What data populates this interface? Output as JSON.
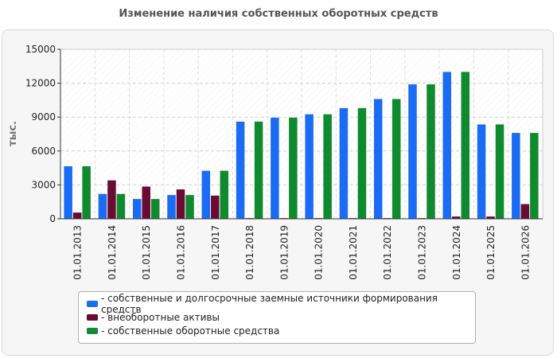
{
  "title": "Изменение наличия собственных оборотных средств",
  "chart_data": {
    "type": "bar",
    "ylabel": "тыс.",
    "ylim": [
      0,
      15000
    ],
    "yticks": [
      0,
      3000,
      6000,
      9000,
      12000,
      15000
    ],
    "grid": true,
    "legend_position": "bottom",
    "categories": [
      "01.01.2013",
      "01.01.2014",
      "01.01.2015",
      "01.01.2016",
      "01.01.2017",
      "01.01.2018",
      "01.01.2019",
      "01.01.2020",
      "01.01.2021",
      "01.01.2022",
      "01.01.2023",
      "01.01.2024",
      "01.01.2025",
      "01.01.2026"
    ],
    "series": [
      {
        "name": "- собственные и долгосрочные заемные источники формирования средств",
        "color": "#1a6cf5",
        "values": [
          4650,
          2200,
          1750,
          2100,
          4250,
          8600,
          8950,
          9250,
          9800,
          10600,
          11900,
          13000,
          8350,
          7600
        ]
      },
      {
        "name": "- внеоборотные активы",
        "color": "#6b0a33",
        "values": [
          550,
          3400,
          2850,
          2600,
          2050,
          60,
          60,
          60,
          60,
          60,
          60,
          200,
          200,
          1300
        ]
      },
      {
        "name": "- собственные оборотные средства",
        "color": "#0f8a2e",
        "values": [
          4650,
          2200,
          1750,
          2100,
          4250,
          8600,
          8950,
          9250,
          9800,
          10600,
          11900,
          13000,
          8350,
          7600
        ]
      }
    ]
  }
}
